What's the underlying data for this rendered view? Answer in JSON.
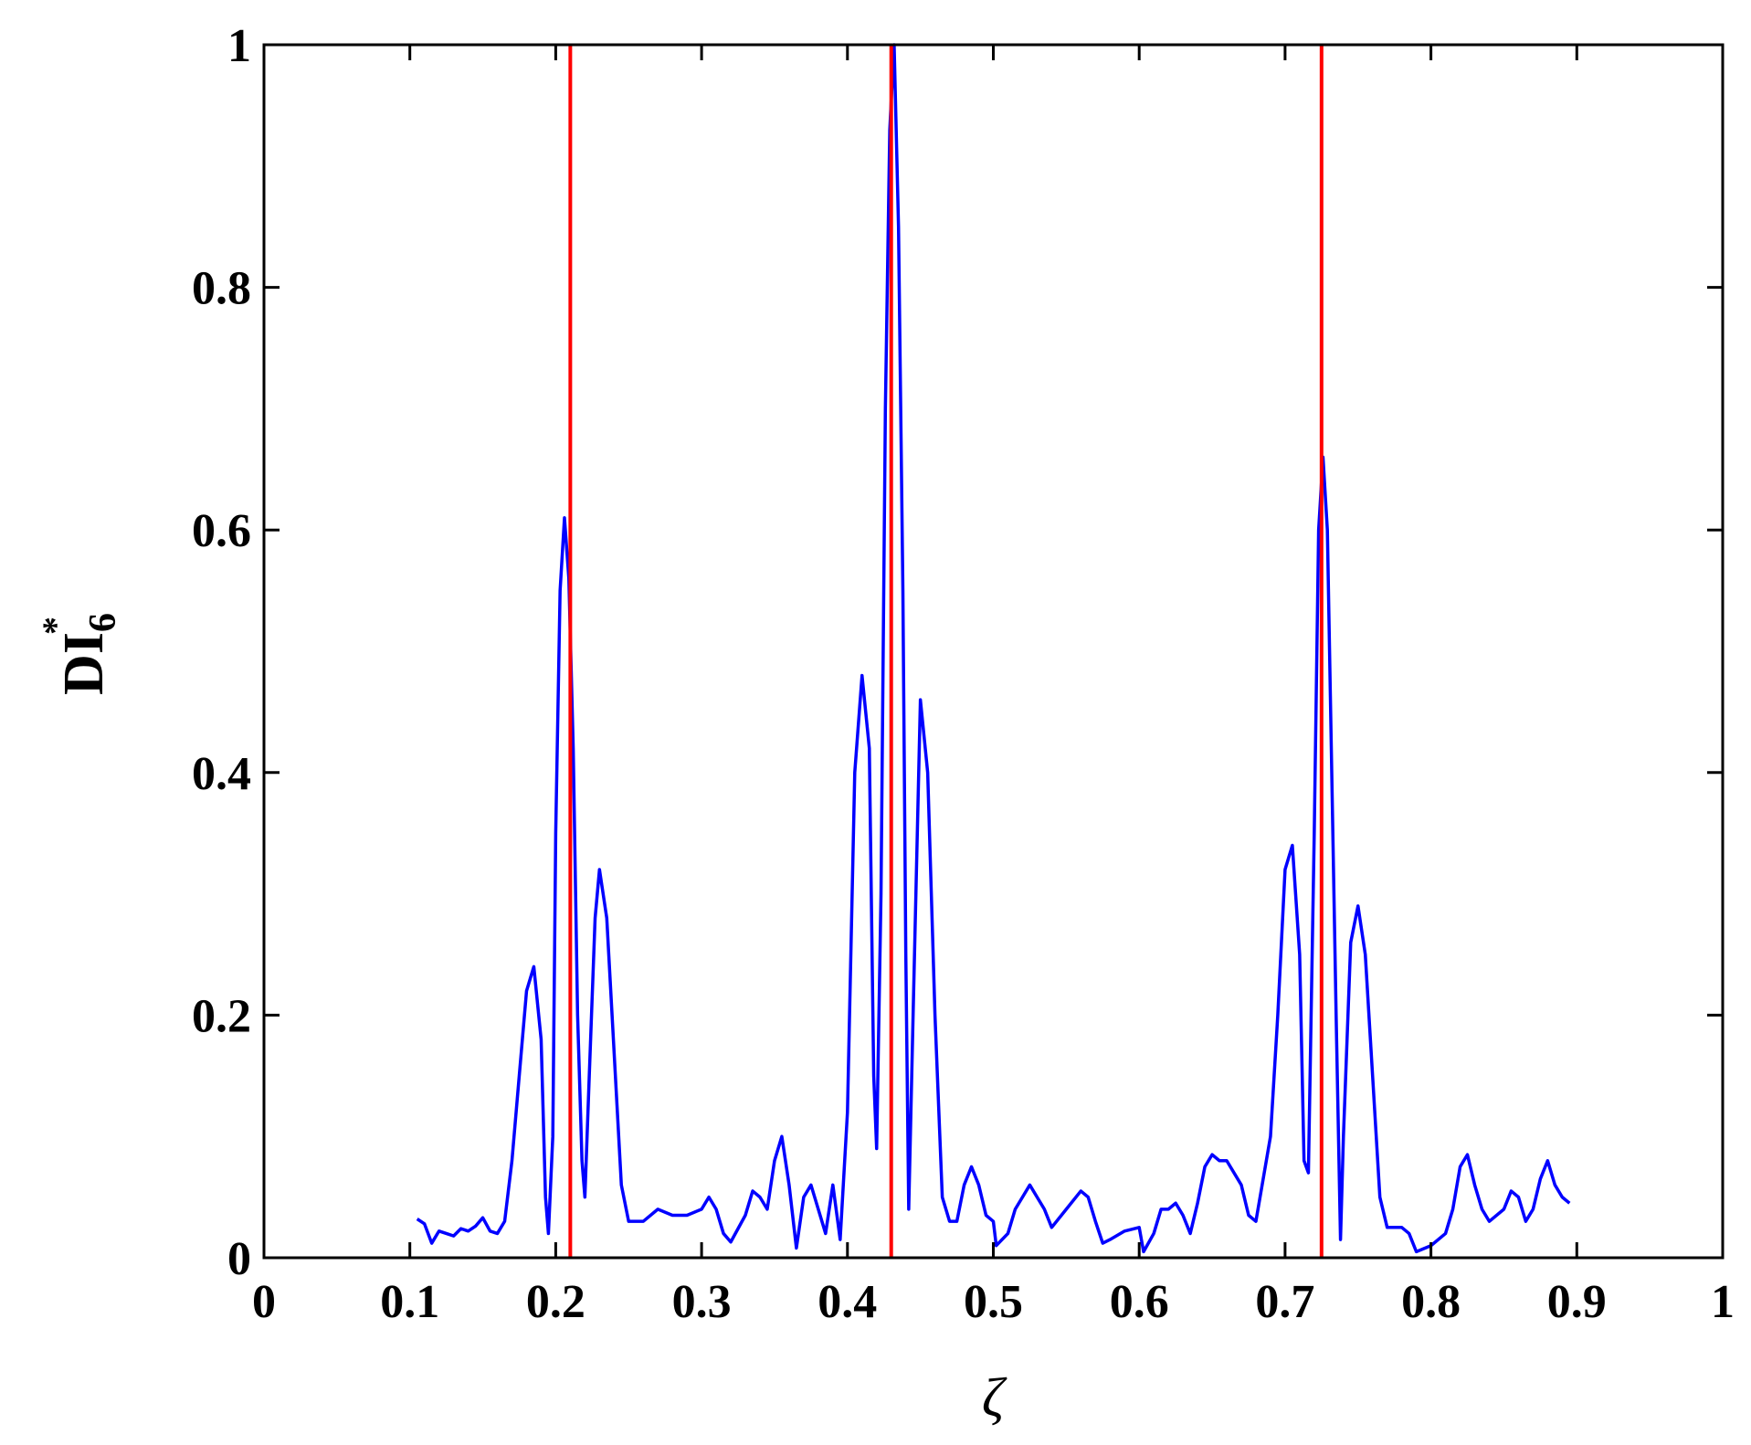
{
  "chart_data": {
    "type": "line",
    "xlabel": "ζ",
    "ylabel": "DI",
    "ylabel_sub": "6",
    "ylabel_sup": "*",
    "xlim": [
      0,
      1
    ],
    "ylim": [
      0,
      1
    ],
    "xticks": [
      0,
      0.1,
      0.2,
      0.3,
      0.4,
      0.5,
      0.6,
      0.7,
      0.8,
      0.9,
      1
    ],
    "yticks": [
      0,
      0.2,
      0.4,
      0.6,
      0.8,
      1
    ],
    "x": [
      0.105,
      0.11,
      0.115,
      0.12,
      0.125,
      0.13,
      0.135,
      0.14,
      0.145,
      0.15,
      0.155,
      0.16,
      0.165,
      0.17,
      0.175,
      0.18,
      0.185,
      0.19,
      0.193,
      0.195,
      0.198,
      0.2,
      0.203,
      0.206,
      0.209,
      0.212,
      0.215,
      0.218,
      0.22,
      0.223,
      0.227,
      0.23,
      0.235,
      0.24,
      0.245,
      0.25,
      0.26,
      0.27,
      0.28,
      0.29,
      0.3,
      0.305,
      0.31,
      0.315,
      0.32,
      0.33,
      0.335,
      0.34,
      0.345,
      0.35,
      0.355,
      0.36,
      0.365,
      0.37,
      0.375,
      0.38,
      0.385,
      0.39,
      0.395,
      0.4,
      0.405,
      0.41,
      0.415,
      0.418,
      0.42,
      0.423,
      0.426,
      0.429,
      0.432,
      0.435,
      0.438,
      0.44,
      0.442,
      0.445,
      0.45,
      0.455,
      0.46,
      0.465,
      0.47,
      0.475,
      0.48,
      0.485,
      0.49,
      0.495,
      0.5,
      0.502,
      0.51,
      0.515,
      0.52,
      0.525,
      0.53,
      0.535,
      0.54,
      0.55,
      0.56,
      0.565,
      0.57,
      0.575,
      0.58,
      0.59,
      0.6,
      0.603,
      0.61,
      0.615,
      0.62,
      0.625,
      0.63,
      0.635,
      0.64,
      0.645,
      0.65,
      0.655,
      0.66,
      0.67,
      0.675,
      0.68,
      0.69,
      0.695,
      0.7,
      0.705,
      0.71,
      0.713,
      0.716,
      0.72,
      0.723,
      0.726,
      0.729,
      0.732,
      0.735,
      0.738,
      0.74,
      0.745,
      0.75,
      0.755,
      0.76,
      0.765,
      0.77,
      0.78,
      0.785,
      0.79,
      0.8,
      0.81,
      0.815,
      0.82,
      0.825,
      0.83,
      0.835,
      0.84,
      0.85,
      0.855,
      0.86,
      0.865,
      0.87,
      0.875,
      0.88,
      0.885,
      0.89,
      0.895
    ],
    "series": [
      {
        "color": "#0000ff",
        "values": [
          0.032,
          0.028,
          0.012,
          0.022,
          0.02,
          0.018,
          0.024,
          0.022,
          0.026,
          0.033,
          0.022,
          0.02,
          0.03,
          0.08,
          0.15,
          0.22,
          0.24,
          0.18,
          0.05,
          0.02,
          0.1,
          0.35,
          0.55,
          0.61,
          0.56,
          0.42,
          0.2,
          0.08,
          0.05,
          0.15,
          0.28,
          0.32,
          0.28,
          0.17,
          0.06,
          0.03,
          0.03,
          0.04,
          0.035,
          0.035,
          0.04,
          0.05,
          0.04,
          0.02,
          0.013,
          0.035,
          0.055,
          0.05,
          0.04,
          0.08,
          0.1,
          0.06,
          0.008,
          0.05,
          0.06,
          0.04,
          0.02,
          0.06,
          0.015,
          0.12,
          0.4,
          0.48,
          0.42,
          0.15,
          0.09,
          0.3,
          0.7,
          0.93,
          1.0,
          0.85,
          0.55,
          0.25,
          0.04,
          0.2,
          0.46,
          0.4,
          0.2,
          0.05,
          0.03,
          0.03,
          0.06,
          0.075,
          0.06,
          0.035,
          0.03,
          0.01,
          0.02,
          0.04,
          0.05,
          0.06,
          0.05,
          0.04,
          0.025,
          0.04,
          0.055,
          0.05,
          0.03,
          0.012,
          0.015,
          0.022,
          0.025,
          0.005,
          0.02,
          0.04,
          0.04,
          0.045,
          0.035,
          0.02,
          0.045,
          0.075,
          0.085,
          0.08,
          0.08,
          0.06,
          0.035,
          0.03,
          0.1,
          0.2,
          0.32,
          0.34,
          0.25,
          0.08,
          0.07,
          0.35,
          0.6,
          0.66,
          0.6,
          0.4,
          0.2,
          0.015,
          0.1,
          0.26,
          0.29,
          0.25,
          0.15,
          0.05,
          0.025,
          0.025,
          0.02,
          0.005,
          0.01,
          0.02,
          0.04,
          0.075,
          0.085,
          0.06,
          0.04,
          0.03,
          0.04,
          0.055,
          0.05,
          0.03,
          0.04,
          0.065,
          0.08,
          0.06,
          0.05,
          0.045
        ]
      }
    ],
    "vlines": {
      "color": "#ff0000",
      "x": [
        0.21,
        0.43,
        0.725
      ]
    }
  }
}
